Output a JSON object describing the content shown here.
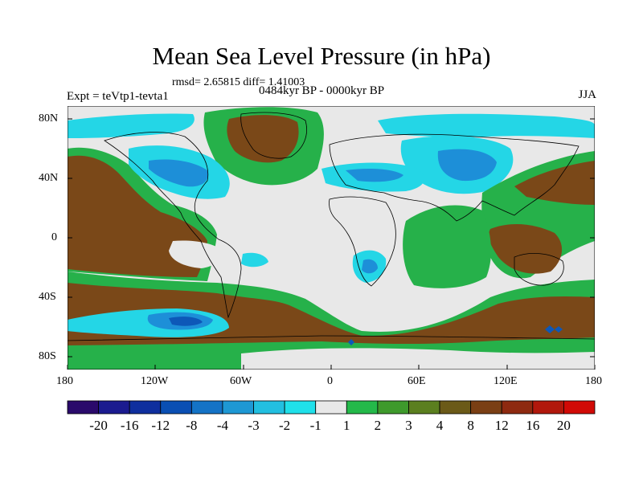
{
  "title": "Mean Sea Level Pressure (in hPa)",
  "stats": "rmsd= 2.65815 diff= 1.41003",
  "period": "0484kyr BP - 0000kyr BP",
  "experiment": "Expt = teVtp1-tevta1",
  "season": "JJA",
  "axes": {
    "x_ticks": [
      "180",
      "120W",
      "60W",
      "0",
      "60E",
      "120E",
      "180"
    ],
    "y_ticks": [
      "80N",
      "40N",
      "0",
      "40S",
      "80S"
    ]
  },
  "colorbar": {
    "labels": [
      "-20",
      "-16",
      "-12",
      "-8",
      "-4",
      "-3",
      "-2",
      "-1",
      "1",
      "2",
      "3",
      "4",
      "8",
      "12",
      "16",
      "20"
    ],
    "colors": [
      "#2a0a6b",
      "#1b1b8f",
      "#0f2f9e",
      "#0a4fb3",
      "#1473c6",
      "#1e98d4",
      "#22bfe0",
      "#1fe0ea",
      "#e8e8e8",
      "#24b94a",
      "#3e9a2c",
      "#5b7f1f",
      "#6b5a18",
      "#7a3f14",
      "#8e2a10",
      "#b1180c",
      "#d10a06"
    ]
  },
  "palette": {
    "neutral": "#e8e8e8",
    "brown": "#7a4818",
    "green": "#26b14a",
    "cyan": "#24d6e6",
    "blue": "#1d8fd8",
    "darkblue": "#0d58b8",
    "land_outline": "#000000"
  }
}
